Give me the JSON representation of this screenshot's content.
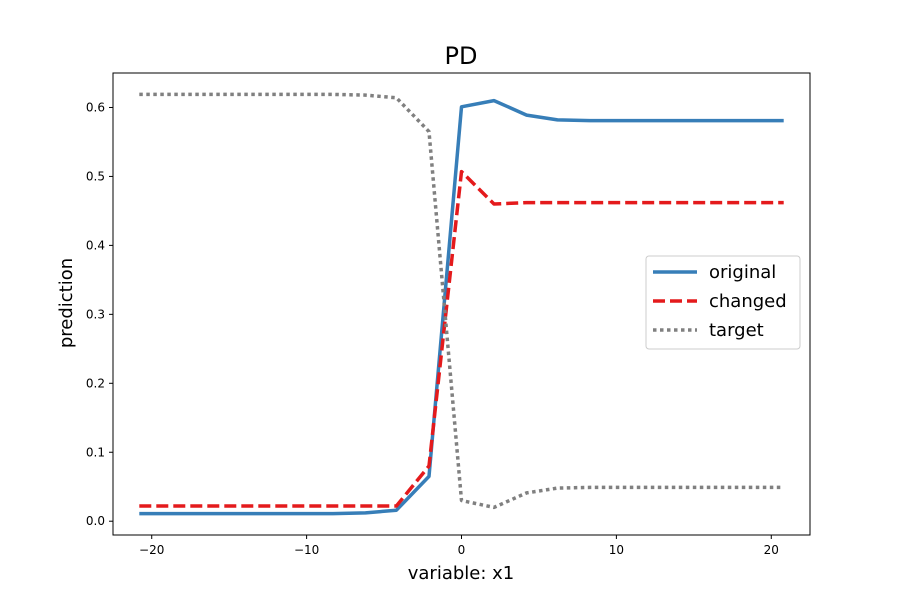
{
  "chart_data": {
    "type": "line",
    "title": "PD",
    "xlabel": "variable: x1",
    "ylabel": "prediction",
    "xlim": [
      -22.5,
      22.5
    ],
    "ylim": [
      -0.02,
      0.65
    ],
    "xticks": [
      -20,
      -10,
      0,
      10,
      20
    ],
    "xtick_labels": [
      "−20",
      "−10",
      "0",
      "10",
      "20"
    ],
    "yticks": [
      0.0,
      0.1,
      0.2,
      0.3,
      0.4,
      0.5,
      0.6
    ],
    "ytick_labels": [
      "0.0",
      "0.1",
      "0.2",
      "0.3",
      "0.4",
      "0.5",
      "0.6"
    ],
    "grid": false,
    "legend_position": "center-right",
    "series": [
      {
        "name": "original",
        "color": "#377eb8",
        "dash": "solid",
        "x": [
          -20.8,
          -18.7,
          -16.6,
          -14.5,
          -12.5,
          -10.4,
          -8.3,
          -6.2,
          -4.2,
          -2.1,
          0,
          2.1,
          4.2,
          6.2,
          8.3,
          10.4,
          12.5,
          14.5,
          16.6,
          18.7,
          20.8
        ],
        "y": [
          0.011,
          0.011,
          0.011,
          0.011,
          0.011,
          0.011,
          0.011,
          0.012,
          0.016,
          0.065,
          0.601,
          0.61,
          0.589,
          0.582,
          0.581,
          0.581,
          0.581,
          0.581,
          0.581,
          0.581,
          0.581
        ]
      },
      {
        "name": "changed",
        "color": "#e41a1c",
        "dash": "dashed",
        "x": [
          -20.8,
          -18.7,
          -16.6,
          -14.5,
          -12.5,
          -10.4,
          -8.3,
          -6.2,
          -4.2,
          -2.1,
          0,
          2.1,
          4.2,
          6.2,
          8.3,
          10.4,
          12.5,
          14.5,
          16.6,
          18.7,
          20.8
        ],
        "y": [
          0.022,
          0.022,
          0.022,
          0.022,
          0.022,
          0.022,
          0.022,
          0.022,
          0.022,
          0.08,
          0.507,
          0.46,
          0.462,
          0.462,
          0.462,
          0.462,
          0.462,
          0.462,
          0.462,
          0.462,
          0.462
        ]
      },
      {
        "name": "target",
        "color": "#808080",
        "dash": "dotted",
        "x": [
          -20.8,
          -18.7,
          -16.6,
          -14.5,
          -12.5,
          -10.4,
          -8.3,
          -6.2,
          -4.2,
          -2.1,
          0,
          2.1,
          4.2,
          6.2,
          8.3,
          10.4,
          12.5,
          14.5,
          16.6,
          18.7,
          20.8
        ],
        "y": [
          0.619,
          0.619,
          0.619,
          0.619,
          0.619,
          0.619,
          0.619,
          0.618,
          0.614,
          0.565,
          0.03,
          0.02,
          0.041,
          0.048,
          0.049,
          0.049,
          0.049,
          0.049,
          0.049,
          0.049,
          0.049
        ]
      }
    ]
  }
}
